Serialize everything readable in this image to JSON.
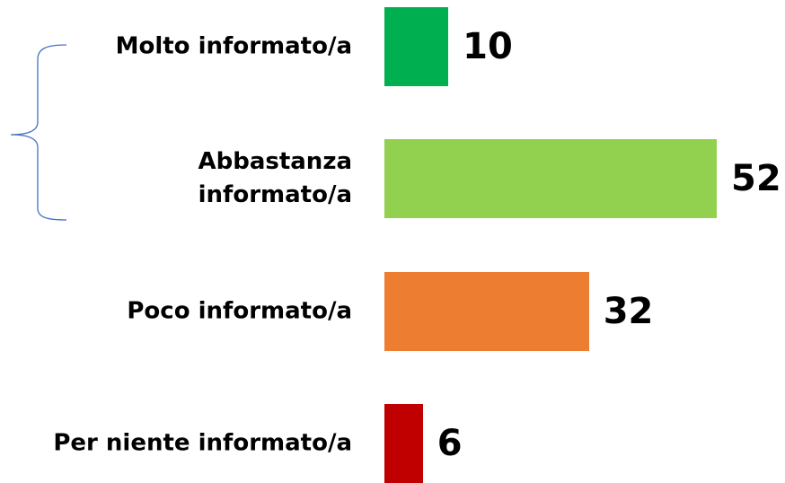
{
  "chart_data": {
    "type": "bar",
    "orientation": "horizontal",
    "categories": [
      "Molto informato/a",
      "Abbastanza informato/a",
      "Poco informato/a",
      "Per niente informato/a"
    ],
    "values": [
      10,
      52,
      32,
      6
    ],
    "colors": [
      "#00b050",
      "#92d050",
      "#ed7d31",
      "#c00000"
    ]
  }
}
